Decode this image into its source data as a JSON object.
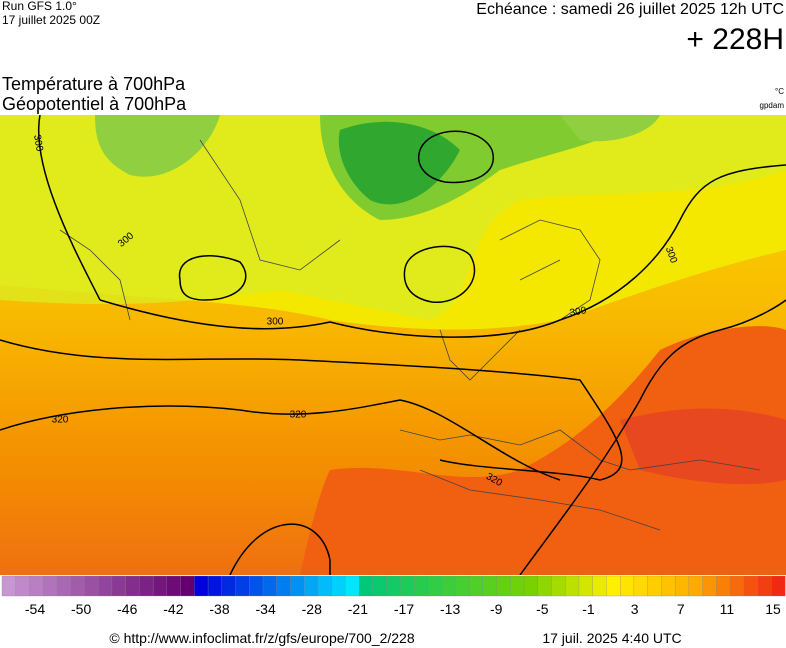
{
  "header": {
    "run": "Run GFS 1.0°",
    "run_date": "17 juillet 2025 00Z",
    "forecast": "Echéance : samedi 26 juillet 2025 12h UTC",
    "lead": "+ 228H"
  },
  "titles": {
    "line1": "Température à 700hPa",
    "line2": "Géopotentiel à 700hPa",
    "unit1": "°C",
    "unit2": "gpdam"
  },
  "map": {
    "contour_labels": [
      "300",
      "300",
      "300",
      "300",
      "300",
      "320",
      "320",
      "320"
    ]
  },
  "colorbar": {
    "labels": [
      -54,
      -50,
      -46,
      -42,
      -38,
      -34,
      -28,
      -21,
      -17,
      -13,
      -9,
      -5,
      -1,
      3,
      7,
      11,
      15
    ]
  },
  "footer": {
    "url": "© http://www.infoclimat.fr/z/gfs/europe/700_2/228",
    "timestamp": "17 juil. 2025  4:40 UTC"
  }
}
